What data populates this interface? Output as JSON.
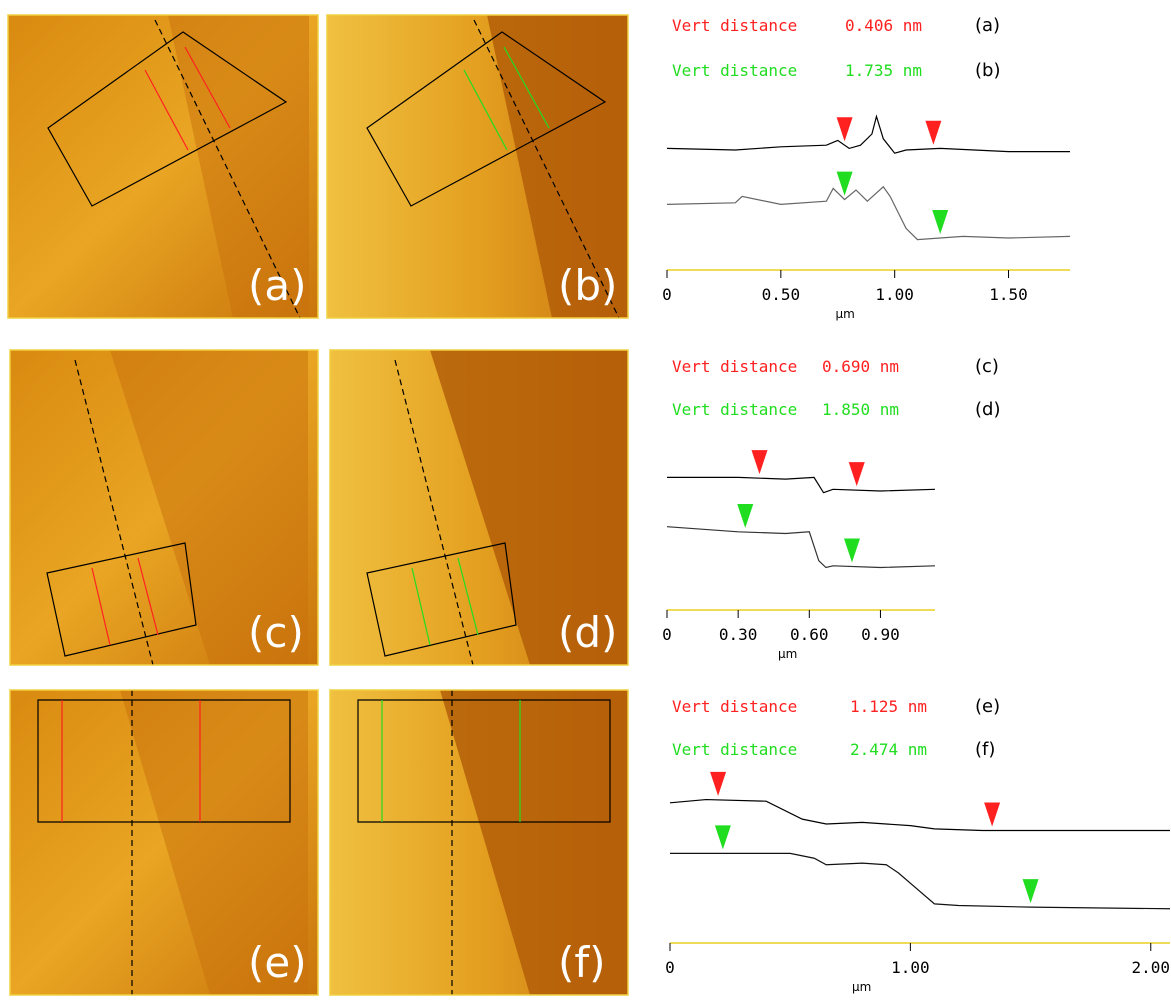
{
  "rows": [
    {
      "images": [
        {
          "label": "(a)"
        },
        {
          "label": "(b)"
        }
      ],
      "measurements": [
        {
          "text": "Vert distance",
          "value": "0.406 nm",
          "label": "(a)",
          "color": "#ff2020"
        },
        {
          "text": "Vert distance",
          "value": "1.735 nm",
          "label": "(b)",
          "color": "#20dd20"
        }
      ],
      "plot": {
        "xlim": [
          0,
          1.77
        ],
        "ylim": [
          0,
          10
        ],
        "xlabel": "µm",
        "xticks": [
          0,
          {
            "value": 0.5,
            "label": "0.50"
          },
          {
            "value": 1,
            "label": "1.00"
          },
          {
            "value": 1.5,
            "label": "1.50"
          }
        ],
        "profiles": [
          {
            "color": "#000000",
            "cursor_color": "#ff2020",
            "cursors": [
              0.78,
              1.17
            ],
            "x": [
              0,
              0.3,
              0.5,
              0.7,
              0.75,
              0.8,
              0.85,
              0.9,
              0.92,
              0.95,
              1.0,
              1.05,
              1.2,
              1.5,
              1.77
            ],
            "y": [
              7.6,
              7.5,
              7.7,
              7.8,
              8.1,
              7.6,
              7.8,
              8.5,
              9.6,
              8.2,
              7.3,
              7.5,
              7.6,
              7.4,
              7.4
            ]
          },
          {
            "color": "#666666",
            "cursor_color": "#20dd20",
            "cursors": [
              0.78,
              1.2
            ],
            "x": [
              0,
              0.3,
              0.33,
              0.5,
              0.7,
              0.73,
              0.78,
              0.83,
              0.88,
              0.95,
              0.98,
              1.05,
              1.1,
              1.3,
              1.5,
              1.77
            ],
            "y": [
              4.1,
              4.2,
              4.6,
              4.1,
              4.3,
              5.1,
              4.4,
              5.0,
              4.3,
              5.2,
              4.6,
              2.6,
              1.9,
              2.1,
              2.0,
              2.1
            ]
          }
        ]
      }
    },
    {
      "images": [
        {
          "label": "(c)"
        },
        {
          "label": "(d)"
        }
      ],
      "measurements": [
        {
          "text": "Vert distance",
          "value": "0.690 nm",
          "label": "(c)",
          "color": "#ff2020"
        },
        {
          "text": "Vert distance",
          "value": "1.850 nm",
          "label": "(d)",
          "color": "#20dd20"
        }
      ],
      "plot": {
        "xlim": [
          0,
          1.13
        ],
        "ylim": [
          0,
          10
        ],
        "xlabel": "µm",
        "xticks": [
          0,
          {
            "value": 0.3,
            "label": "0.30"
          },
          {
            "value": 0.6,
            "label": "0.60"
          },
          {
            "value": 0.9,
            "label": "0.90"
          }
        ],
        "profiles": [
          {
            "color": "#000000",
            "cursor_color": "#ff2020",
            "cursors": [
              0.39,
              0.8
            ],
            "x": [
              0,
              0.3,
              0.5,
              0.62,
              0.66,
              0.7,
              0.9,
              1.13
            ],
            "y": [
              7.8,
              7.8,
              7.7,
              7.8,
              6.9,
              7.1,
              7.0,
              7.1
            ]
          },
          {
            "color": "#333333",
            "cursor_color": "#20dd20",
            "cursors": [
              0.33,
              0.78
            ],
            "x": [
              0,
              0.3,
              0.5,
              0.6,
              0.64,
              0.67,
              0.7,
              0.9,
              1.13
            ],
            "y": [
              4.9,
              4.6,
              4.5,
              4.6,
              2.9,
              2.5,
              2.6,
              2.5,
              2.6
            ]
          }
        ]
      }
    },
    {
      "images": [
        {
          "label": "(e)"
        },
        {
          "label": "(f)"
        }
      ],
      "measurements": [
        {
          "text": "Vert distance",
          "value": "1.125 nm",
          "label": "(e)",
          "color": "#ff2020"
        },
        {
          "text": "Vert distance",
          "value": "2.474 nm",
          "label": "(f)",
          "color": "#20dd20"
        }
      ],
      "plot": {
        "xlim": [
          0,
          2.08
        ],
        "ylim": [
          0,
          10
        ],
        "xlabel": "µm",
        "xticks": [
          0,
          {
            "value": 1,
            "label": "1.00"
          },
          {
            "value": 2,
            "label": "2.00"
          }
        ],
        "profiles": [
          {
            "color": "#000000",
            "cursor_color": "#ff2020",
            "cursors": [
              0.2,
              1.34
            ],
            "x": [
              0,
              0.15,
              0.4,
              0.55,
              0.65,
              0.8,
              1.0,
              1.1,
              1.3,
              1.5,
              2.08
            ],
            "y": [
              8.6,
              8.8,
              8.7,
              7.6,
              7.3,
              7.4,
              7.2,
              7.0,
              6.9,
              6.9,
              6.9
            ]
          },
          {
            "color": "#111111",
            "cursor_color": "#20dd20",
            "cursors": [
              0.22,
              1.5
            ],
            "x": [
              0,
              0.2,
              0.5,
              0.6,
              0.65,
              0.8,
              0.9,
              0.95,
              1.1,
              1.2,
              1.5,
              2.08
            ],
            "y": [
              5.5,
              5.5,
              5.5,
              5.2,
              4.8,
              4.9,
              4.8,
              4.3,
              2.4,
              2.3,
              2.2,
              2.1
            ]
          }
        ]
      }
    }
  ]
}
